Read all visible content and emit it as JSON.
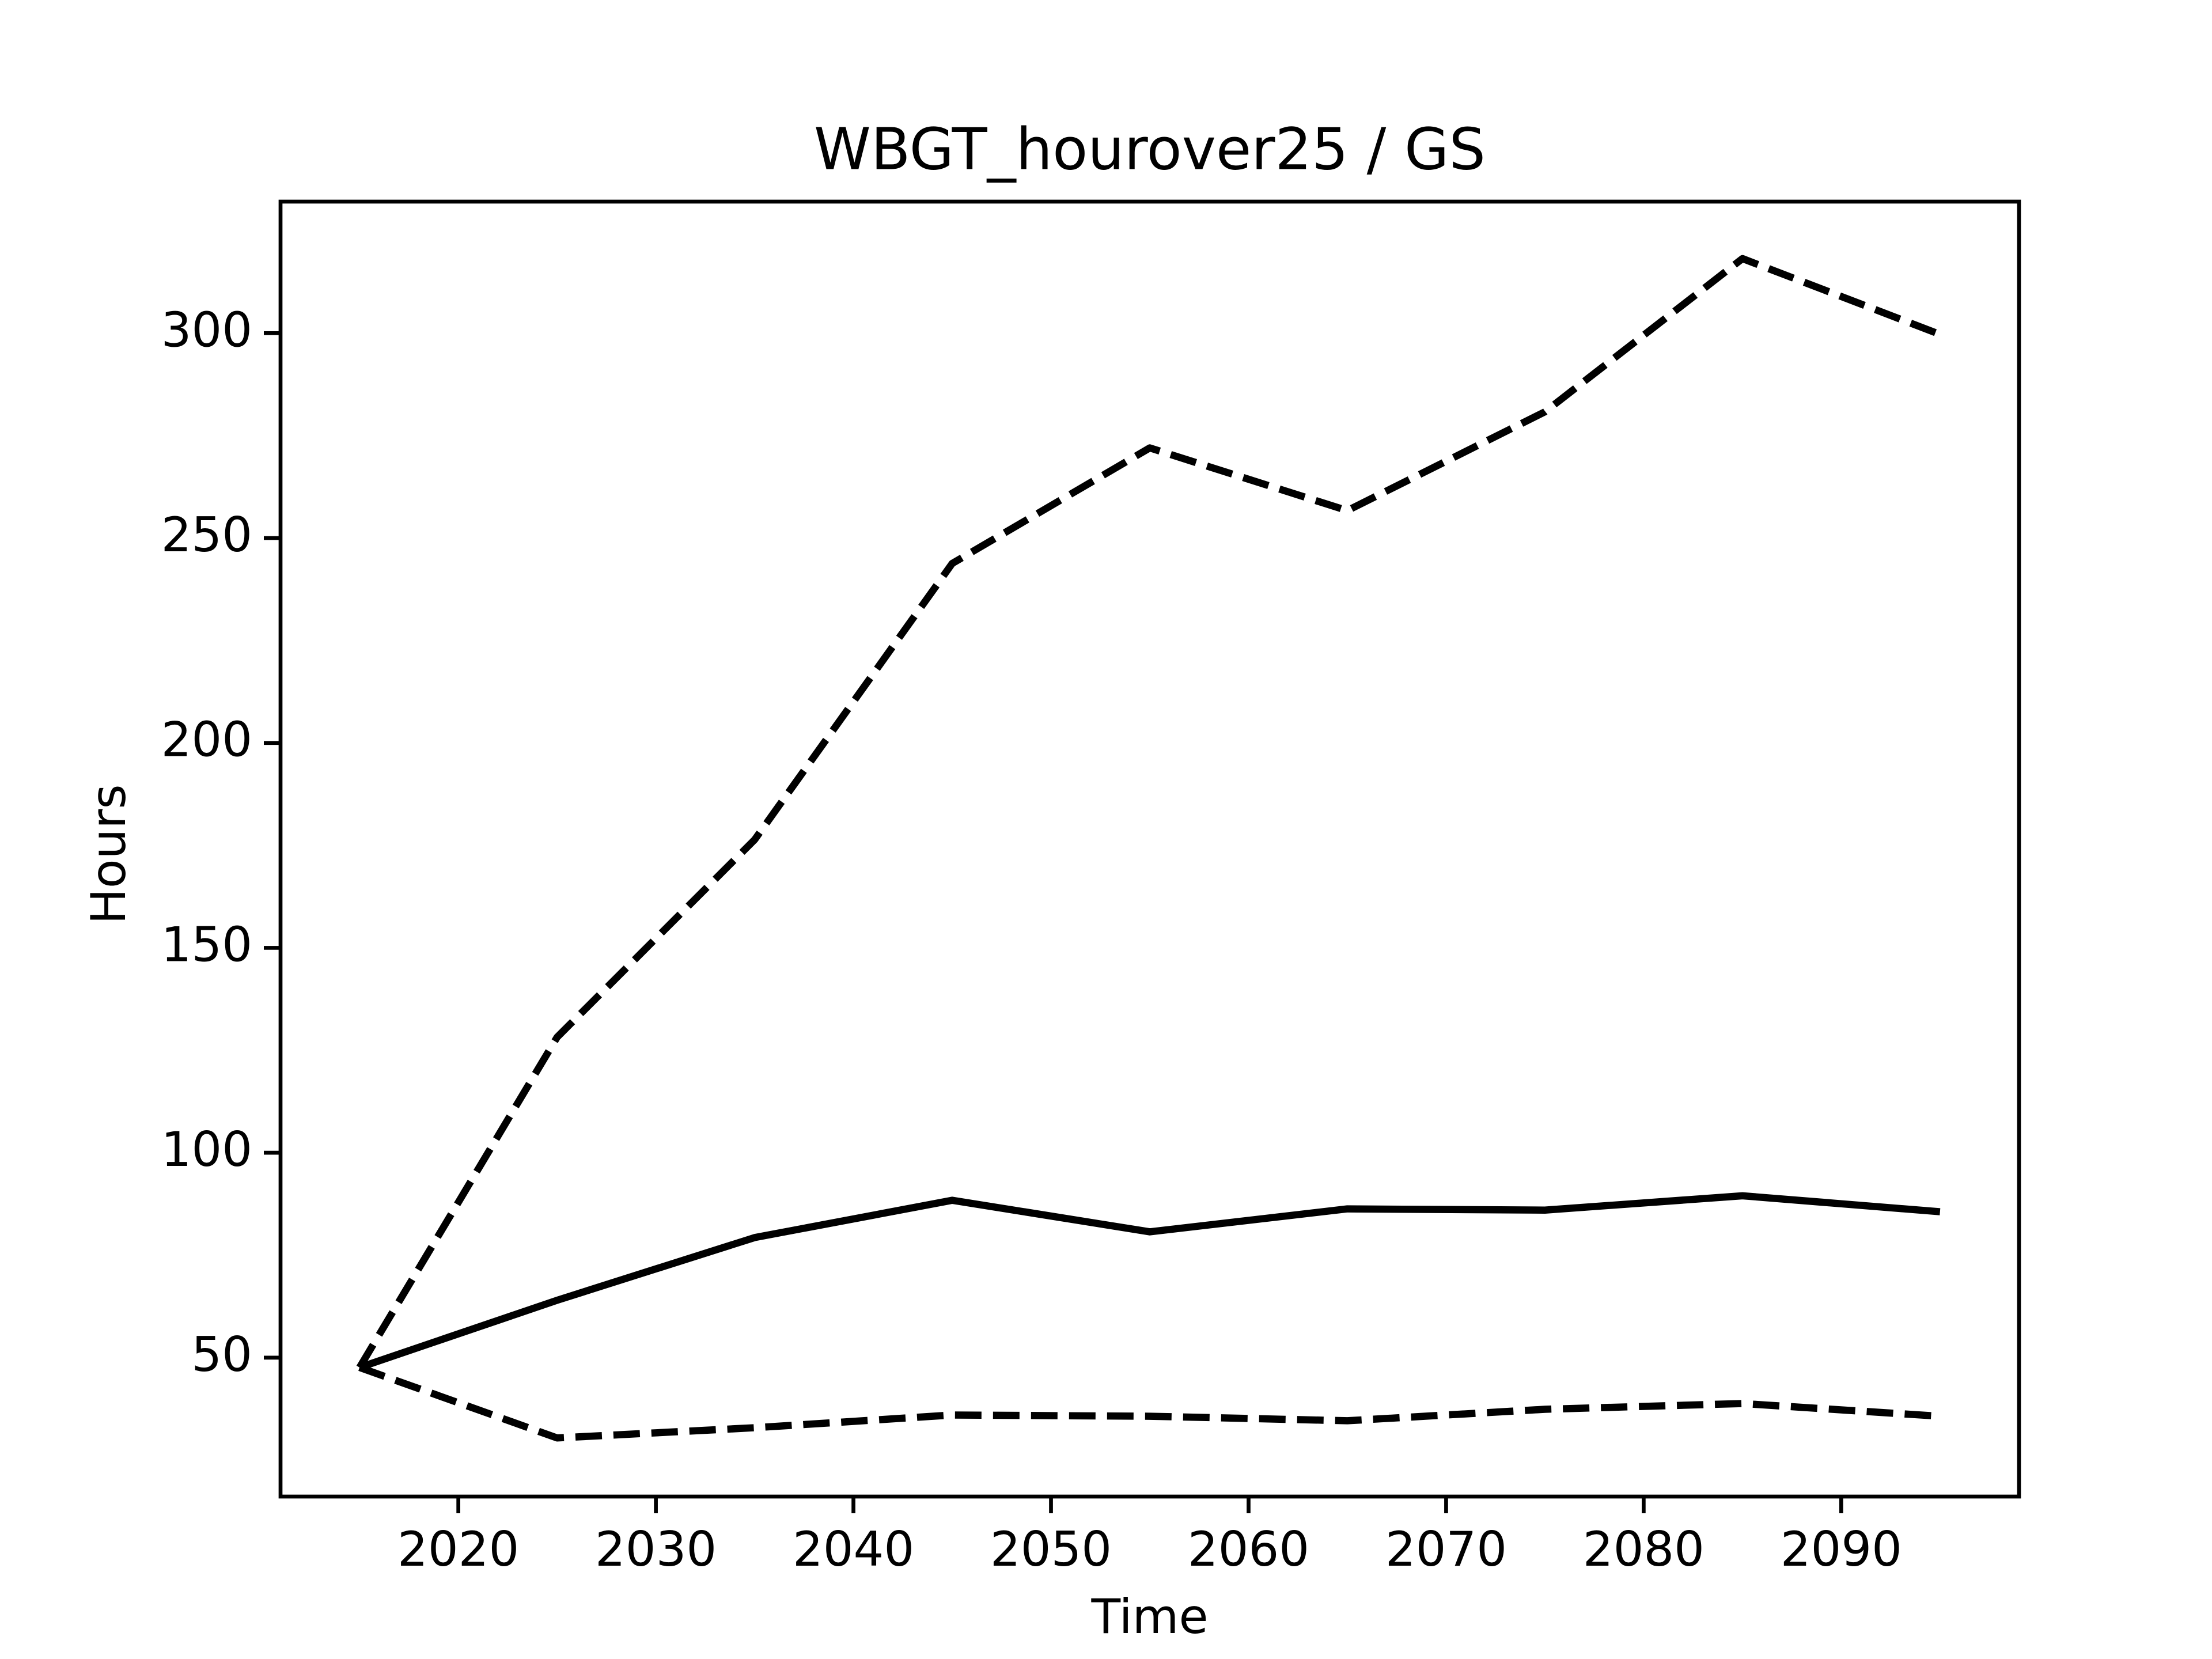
{
  "chart_data": {
    "type": "line",
    "title": "WBGT_hourover25 / GS",
    "x_label": "Time",
    "y_label": "Hours",
    "x": [
      2015,
      2025,
      2035,
      2045,
      2055,
      2065,
      2075,
      2085,
      2095
    ],
    "series": [
      {
        "color": "#000000",
        "style": "dashed",
        "values": [
          47.6,
          128.2,
          176.4,
          243.8,
          272.0,
          256.7,
          280.8,
          318.2,
          299.7
        ]
      },
      {
        "color": "#000000",
        "style": "solid",
        "values": [
          47.6,
          64.0,
          79.3,
          88.4,
          80.7,
          86.3,
          86.0,
          89.5,
          85.6
        ]
      },
      {
        "color": "#000000",
        "style": "dashed",
        "values": [
          47.6,
          30.4,
          32.9,
          36.0,
          35.7,
          34.6,
          37.4,
          38.8,
          35.7
        ]
      }
    ],
    "xlim": [
      2011,
      2099
    ],
    "ylim": [
      16.1,
      332.1
    ],
    "xticks": [
      2020,
      2030,
      2040,
      2050,
      2060,
      2070,
      2080,
      2090
    ],
    "yticks": [
      50,
      100,
      150,
      200,
      250,
      300
    ],
    "grid": false
  }
}
